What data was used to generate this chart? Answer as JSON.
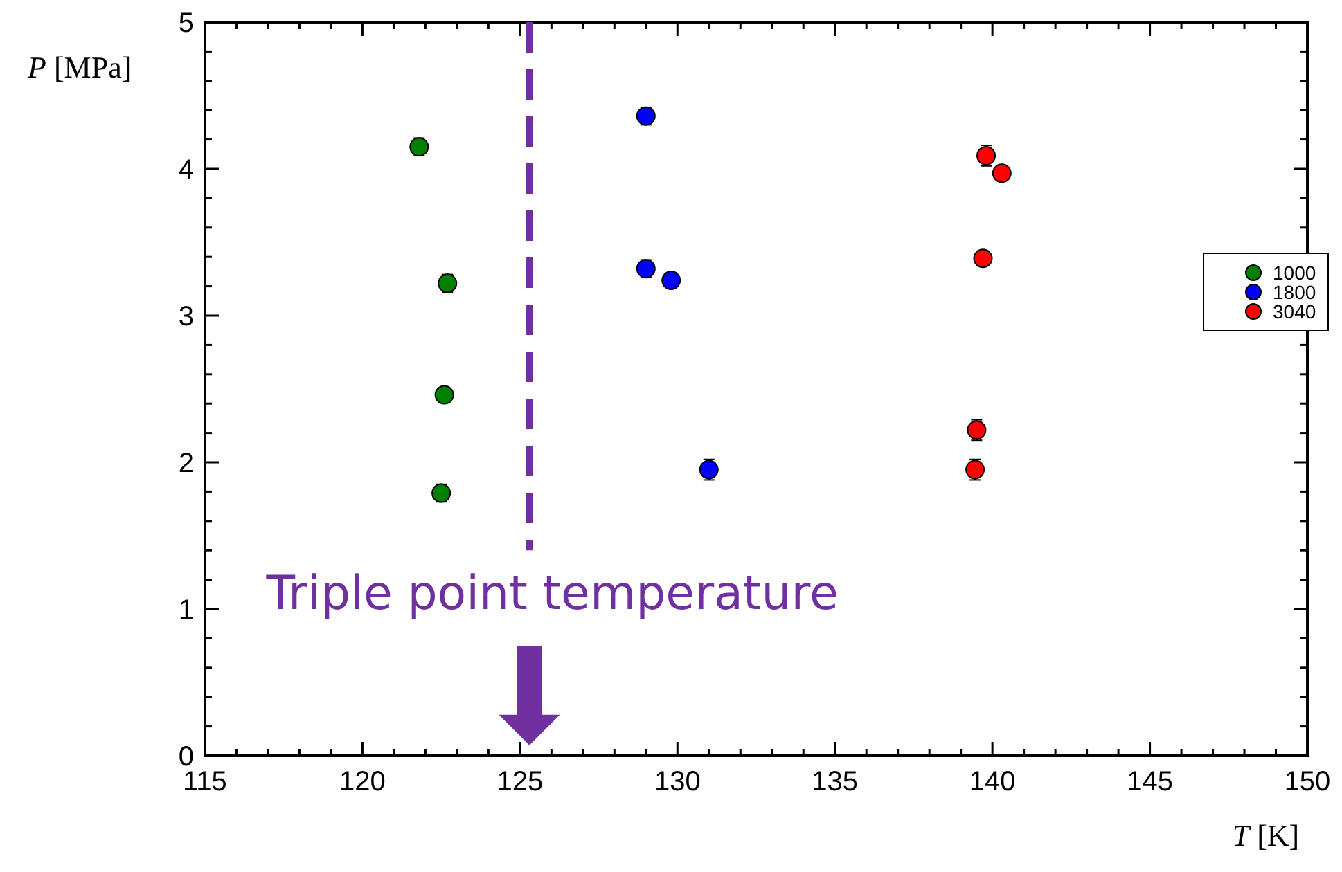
{
  "chart_data": {
    "type": "scatter",
    "xlabel": "T [K]",
    "ylabel": "P [MPa]",
    "xlim": [
      115,
      150
    ],
    "xticks": [
      115,
      120,
      125,
      130,
      135,
      140,
      145,
      150
    ],
    "ylim": [
      0,
      5
    ],
    "yticks": [
      0,
      1,
      2,
      3,
      4,
      5
    ],
    "marker": "circle",
    "legend": "right",
    "grid": false,
    "series": [
      {
        "name": "1000",
        "color": "#008000",
        "x": [
          121.8,
          122.7,
          122.6,
          122.5
        ],
        "values": [
          4.15,
          3.22,
          2.46,
          1.79
        ],
        "errors": [
          0.06,
          0.06,
          null,
          0.06
        ]
      },
      {
        "name": "1800",
        "color": "#0000ff",
        "x": [
          129.0,
          129.0,
          129.8,
          131.0
        ],
        "values": [
          4.36,
          3.32,
          3.24,
          1.95
        ],
        "errors": [
          0.06,
          0.06,
          null,
          0.07
        ]
      },
      {
        "name": "3040",
        "color": "#ff0000",
        "x": [
          139.8,
          140.3,
          139.7,
          139.5,
          139.45
        ],
        "values": [
          4.09,
          3.97,
          3.39,
          2.22,
          1.95
        ],
        "errors": [
          0.07,
          0.05,
          0.05,
          0.07,
          0.07
        ]
      }
    ],
    "ref_lines": [
      {
        "axis": "x",
        "value": 125.3,
        "label": "Triple point temperature",
        "color": "#7030a0",
        "line_style": "dashed"
      }
    ]
  }
}
